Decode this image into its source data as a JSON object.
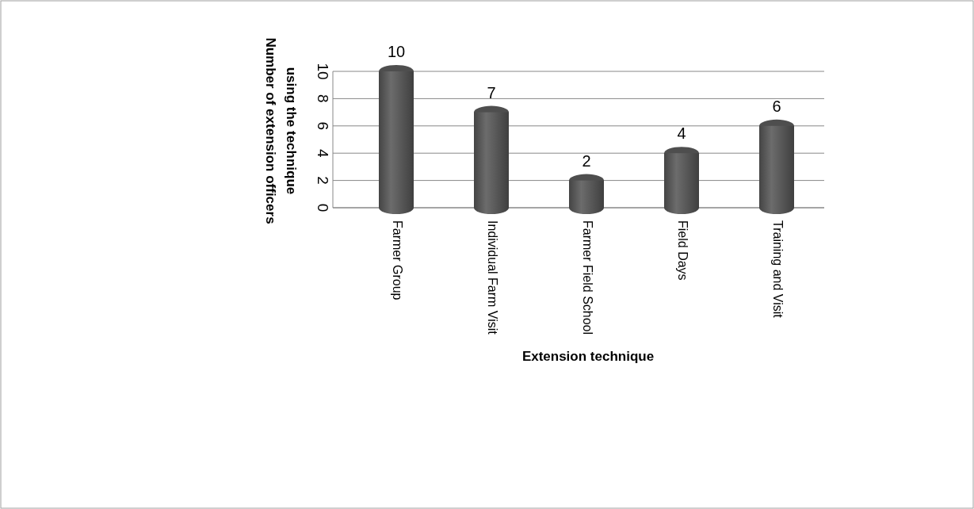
{
  "chart_data": {
    "type": "bar",
    "xlabel": "Extension technique",
    "ylabel": "Number of extension officers using the technique",
    "categories": [
      "Farmer Group",
      "Individual Farm Visit",
      "Farmer Field School",
      "Field Days",
      "Training and Visit"
    ],
    "values": [
      10,
      7,
      2,
      4,
      6
    ],
    "color": "#5a5a5a",
    "ylim": [
      0,
      10
    ],
    "yticks": [
      0,
      2,
      4,
      6,
      8,
      10
    ],
    "grid": "y",
    "data_labels": true
  }
}
